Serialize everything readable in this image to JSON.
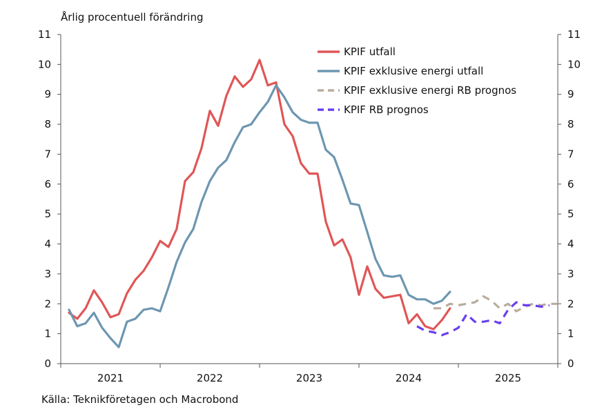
{
  "chart_data": {
    "type": "line",
    "ylabel": "Årlig procentuell förändring",
    "source": "Källa: Teknikföretagen och Macrobond",
    "ylim": [
      0,
      11
    ],
    "yticks": [
      0,
      1,
      2,
      3,
      4,
      5,
      6,
      7,
      8,
      9,
      10,
      11
    ],
    "xlim": [
      2020.917,
      2025.917
    ],
    "x_categories": [
      "2021",
      "2022",
      "2023",
      "2024",
      "2025"
    ],
    "grid": false,
    "legend_position": "top-right",
    "series": [
      {
        "name": "KPIF utfall",
        "color": "#e05656",
        "dash": "solid",
        "values": [
          [
            2021.0,
            1.7
          ],
          [
            2021.083,
            1.5
          ],
          [
            2021.167,
            1.85
          ],
          [
            2021.25,
            2.45
          ],
          [
            2021.333,
            2.05
          ],
          [
            2021.417,
            1.55
          ],
          [
            2021.5,
            1.65
          ],
          [
            2021.583,
            2.35
          ],
          [
            2021.667,
            2.8
          ],
          [
            2021.75,
            3.1
          ],
          [
            2021.833,
            3.55
          ],
          [
            2021.917,
            4.1
          ],
          [
            2022.0,
            3.9
          ],
          [
            2022.083,
            4.5
          ],
          [
            2022.167,
            6.1
          ],
          [
            2022.25,
            6.4
          ],
          [
            2022.333,
            7.2
          ],
          [
            2022.417,
            8.45
          ],
          [
            2022.5,
            7.95
          ],
          [
            2022.583,
            8.95
          ],
          [
            2022.667,
            9.6
          ],
          [
            2022.75,
            9.25
          ],
          [
            2022.833,
            9.5
          ],
          [
            2022.917,
            10.15
          ],
          [
            2023.0,
            9.3
          ],
          [
            2023.083,
            9.4
          ],
          [
            2023.167,
            8.0
          ],
          [
            2023.25,
            7.6
          ],
          [
            2023.333,
            6.7
          ],
          [
            2023.417,
            6.35
          ],
          [
            2023.5,
            6.35
          ],
          [
            2023.583,
            4.75
          ],
          [
            2023.667,
            3.95
          ],
          [
            2023.75,
            4.15
          ],
          [
            2023.833,
            3.55
          ],
          [
            2023.917,
            2.3
          ],
          [
            2024.0,
            3.25
          ],
          [
            2024.083,
            2.5
          ],
          [
            2024.167,
            2.2
          ],
          [
            2024.25,
            2.25
          ],
          [
            2024.333,
            2.3
          ],
          [
            2024.417,
            1.35
          ],
          [
            2024.5,
            1.65
          ],
          [
            2024.583,
            1.25
          ],
          [
            2024.667,
            1.15
          ],
          [
            2024.75,
            1.45
          ],
          [
            2024.833,
            1.85
          ]
        ]
      },
      {
        "name": "KPIF exklusive energi utfall",
        "color": "#6d96b0",
        "dash": "solid",
        "values": [
          [
            2021.0,
            1.8
          ],
          [
            2021.083,
            1.25
          ],
          [
            2021.167,
            1.35
          ],
          [
            2021.25,
            1.7
          ],
          [
            2021.333,
            1.2
          ],
          [
            2021.417,
            0.85
          ],
          [
            2021.5,
            0.55
          ],
          [
            2021.583,
            1.4
          ],
          [
            2021.667,
            1.5
          ],
          [
            2021.75,
            1.8
          ],
          [
            2021.833,
            1.85
          ],
          [
            2021.917,
            1.75
          ],
          [
            2022.0,
            2.55
          ],
          [
            2022.083,
            3.4
          ],
          [
            2022.167,
            4.05
          ],
          [
            2022.25,
            4.5
          ],
          [
            2022.333,
            5.4
          ],
          [
            2022.417,
            6.1
          ],
          [
            2022.5,
            6.55
          ],
          [
            2022.583,
            6.8
          ],
          [
            2022.667,
            7.4
          ],
          [
            2022.75,
            7.9
          ],
          [
            2022.833,
            8.0
          ],
          [
            2022.917,
            8.4
          ],
          [
            2023.0,
            8.75
          ],
          [
            2023.083,
            9.3
          ],
          [
            2023.167,
            8.9
          ],
          [
            2023.25,
            8.4
          ],
          [
            2023.333,
            8.15
          ],
          [
            2023.417,
            8.05
          ],
          [
            2023.5,
            8.05
          ],
          [
            2023.583,
            7.15
          ],
          [
            2023.667,
            6.9
          ],
          [
            2023.75,
            6.15
          ],
          [
            2023.833,
            5.35
          ],
          [
            2023.917,
            5.3
          ],
          [
            2024.0,
            4.4
          ],
          [
            2024.083,
            3.5
          ],
          [
            2024.167,
            2.95
          ],
          [
            2024.25,
            2.9
          ],
          [
            2024.333,
            2.95
          ],
          [
            2024.417,
            2.3
          ],
          [
            2024.5,
            2.15
          ],
          [
            2024.583,
            2.15
          ],
          [
            2024.667,
            2.0
          ],
          [
            2024.75,
            2.1
          ],
          [
            2024.833,
            2.4
          ]
        ]
      },
      {
        "name": "KPIF exklusive energi RB prognos",
        "color": "#b9ac9c",
        "dash": "dashed",
        "values": [
          [
            2024.667,
            1.85
          ],
          [
            2024.75,
            1.85
          ],
          [
            2024.833,
            2.0
          ],
          [
            2024.917,
            1.95
          ],
          [
            2025.0,
            2.0
          ],
          [
            2025.083,
            2.05
          ],
          [
            2025.167,
            2.25
          ],
          [
            2025.25,
            2.1
          ],
          [
            2025.333,
            1.85
          ],
          [
            2025.417,
            2.0
          ],
          [
            2025.5,
            1.75
          ],
          [
            2025.583,
            1.9
          ],
          [
            2025.667,
            2.0
          ],
          [
            2025.75,
            1.95
          ],
          [
            2025.833,
            2.0
          ],
          [
            2025.917,
            2.0
          ]
        ]
      },
      {
        "name": "KPIF RB prognos",
        "color": "#6a3ff0",
        "dash": "dashed",
        "values": [
          [
            2024.5,
            1.25
          ],
          [
            2024.583,
            1.1
          ],
          [
            2024.667,
            1.05
          ],
          [
            2024.75,
            0.95
          ],
          [
            2024.833,
            1.05
          ],
          [
            2024.917,
            1.2
          ],
          [
            2025.0,
            1.65
          ],
          [
            2025.083,
            1.4
          ],
          [
            2025.167,
            1.4
          ],
          [
            2025.25,
            1.45
          ],
          [
            2025.333,
            1.35
          ],
          [
            2025.417,
            1.8
          ],
          [
            2025.5,
            2.05
          ],
          [
            2025.583,
            1.95
          ],
          [
            2025.667,
            1.95
          ],
          [
            2025.75,
            1.9
          ],
          [
            2025.833,
            1.95
          ]
        ]
      }
    ]
  }
}
